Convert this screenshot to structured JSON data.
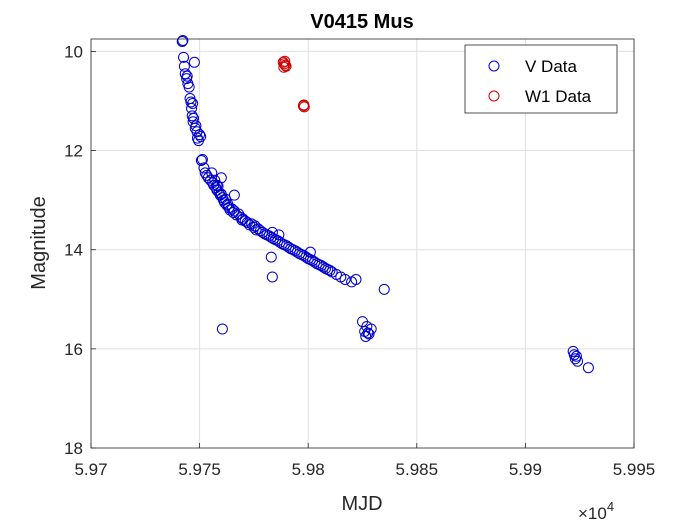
{
  "chart_data": {
    "type": "scatter",
    "title": "V0415 Mus",
    "xlabel": "MJD",
    "ylabel": "Magnitude",
    "xlim": [
      59700,
      59950
    ],
    "ylim": [
      18,
      9.75
    ],
    "y_reversed": true,
    "x_tick_values": [
      59700,
      59750,
      59800,
      59850,
      59900,
      59950
    ],
    "x_tick_labels": [
      "5.97",
      "5.975",
      "5.98",
      "5.985",
      "5.99",
      "5.995"
    ],
    "x_exponent_base": "×10",
    "x_exponent_power": "4",
    "y_tick_values": [
      10,
      12,
      14,
      16,
      18
    ],
    "y_tick_labels": [
      "10",
      "12",
      "14",
      "16",
      "18"
    ],
    "grid": true,
    "legend_position": "top-right",
    "colors": {
      "V Data": "#0000cc",
      "W1 Data": "#cc0000",
      "axis": "#262626",
      "grid": "#dfdfdf"
    },
    "series": [
      {
        "name": "V Data",
        "marker": "circle-open",
        "x": [
          59742.0,
          59742.3,
          59742.6,
          59743.0,
          59743.4,
          59744.0,
          59744.3,
          59744.6,
          59745.2,
          59745.6,
          59746.0,
          59746.3,
          59746.8,
          59746.6,
          59747.2,
          59747.0,
          59747.6,
          59748.3,
          59748.8,
          59748.0,
          59749.0,
          59749.5,
          59750.0,
          59750.5,
          59750.8,
          59751.3,
          59752.0,
          59752.6,
          59753.3,
          59754.0,
          59755.0,
          59755.6,
          59756.0,
          59756.5,
          59757.0,
          59757.5,
          59758.0,
          59758.5,
          59759.0,
          59759.5,
          59760.0,
          59760.5,
          59761.0,
          59761.5,
          59762.0,
          59762.5,
          59763.0,
          59763.5,
          59764.0,
          59765.0,
          59765.5,
          59766.0,
          59767.0,
          59768.0,
          59769.0,
          59769.5,
          59770.0,
          59771.0,
          59772.0,
          59773.0,
          59774.0,
          59775.0,
          59775.5,
          59776.0,
          59777.0,
          59778.0,
          59779.0,
          59780.0,
          59781.0,
          59782.0,
          59783.0,
          59783.5,
          59784.0,
          59785.0,
          59786.0,
          59786.5,
          59787.0,
          59788.0,
          59789.0,
          59790.0,
          59791.0,
          59792.0,
          59793.0,
          59794.0,
          59795.0,
          59796.0,
          59797.0,
          59798.0,
          59799.0,
          59800.0,
          59801.0,
          59802.0,
          59803.0,
          59804.0,
          59805.0,
          59806.0,
          59807.0,
          59808.0,
          59809.0,
          59810.0,
          59811.0,
          59813.0,
          59815.0,
          59817.0,
          59820.0,
          59822.0,
          59835.0,
          59760.5,
          59783.0,
          59783.5,
          59825.0,
          59826.0,
          59827.0,
          59828.0,
          59829.0,
          59826.5,
          59827.5,
          59922.0,
          59922.5,
          59923.0,
          59923.5,
          59924.0,
          59929.0,
          59758.0,
          59766.0,
          59760.0,
          59801.0
        ],
        "y": [
          9.8,
          9.78,
          10.12,
          10.3,
          10.45,
          10.55,
          10.5,
          10.65,
          10.72,
          10.95,
          11.02,
          11.15,
          11.05,
          11.3,
          11.35,
          11.42,
          10.22,
          11.5,
          11.62,
          11.55,
          11.75,
          11.8,
          11.68,
          11.72,
          12.2,
          12.18,
          12.35,
          12.45,
          12.5,
          12.55,
          12.6,
          12.45,
          12.65,
          12.7,
          12.6,
          12.75,
          12.8,
          12.72,
          12.85,
          12.9,
          12.88,
          12.95,
          13.0,
          13.05,
          12.98,
          13.1,
          13.08,
          13.15,
          13.2,
          13.18,
          13.25,
          13.22,
          13.3,
          13.28,
          13.35,
          13.4,
          13.38,
          13.42,
          13.45,
          13.5,
          13.48,
          13.55,
          13.52,
          13.6,
          13.58,
          13.62,
          13.65,
          13.68,
          13.7,
          13.72,
          13.75,
          13.65,
          13.78,
          13.8,
          13.82,
          13.7,
          13.85,
          13.88,
          13.9,
          13.92,
          13.95,
          13.98,
          14.0,
          14.02,
          14.05,
          14.08,
          14.1,
          14.12,
          14.15,
          14.18,
          14.2,
          14.22,
          14.25,
          14.28,
          14.3,
          14.32,
          14.35,
          14.38,
          14.4,
          14.42,
          14.45,
          14.5,
          14.55,
          14.6,
          14.65,
          14.6,
          14.8,
          15.6,
          14.15,
          14.55,
          15.45,
          15.65,
          15.55,
          15.7,
          15.6,
          15.75,
          15.68,
          16.05,
          16.12,
          16.2,
          16.15,
          16.25,
          16.38,
          12.7,
          12.9,
          12.55,
          14.05
        ]
      },
      {
        "name": "W1 Data",
        "marker": "circle-open",
        "x": [
          59788.5,
          59789.0,
          59789.4,
          59789.8,
          59788.8,
          59789.2,
          59797.8,
          59798.2,
          59798.0
        ],
        "y": [
          10.22,
          10.25,
          10.28,
          10.3,
          10.32,
          10.2,
          11.1,
          11.12,
          11.08
        ]
      }
    ]
  }
}
